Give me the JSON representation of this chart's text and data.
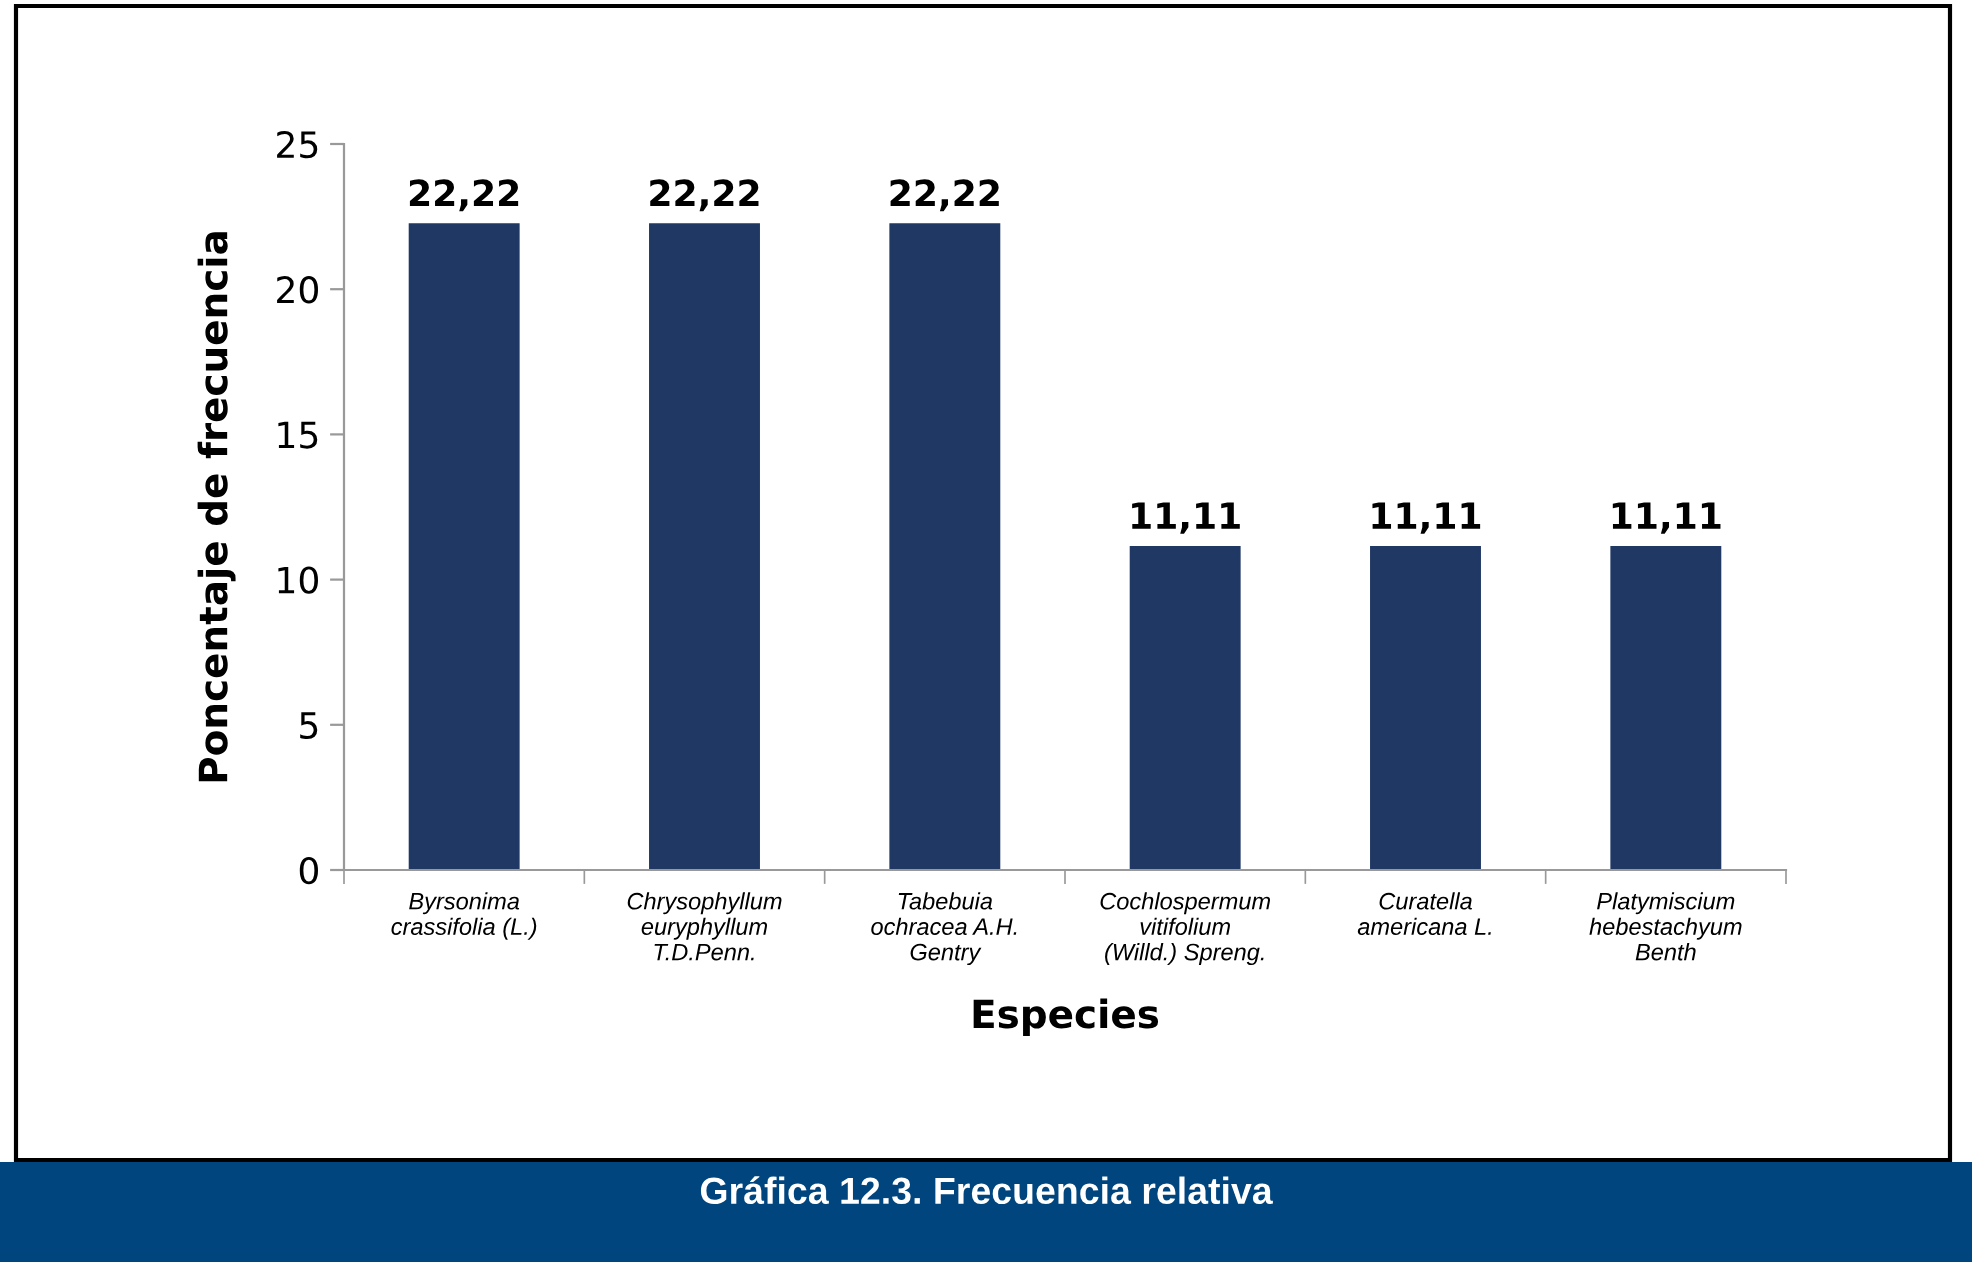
{
  "chart_data": {
    "type": "bar",
    "title": "Gráfica 12.3. Frecuencia relativa",
    "xlabel": "Especies",
    "ylabel": "Poncentaje de frecuencia",
    "categories": [
      "Byrsonima\ncrassifolia (L.)",
      "Chrysophyllum\neuryphyllum\nT.D.Penn.",
      "Tabebuia\nochracea A.H.\nGentry",
      "Cochlospermum\nvitifolium\n(Willd.) Spreng.",
      "Curatella\namericana L.",
      "Platymiscium\nhebestachyum\nBenth"
    ],
    "values": [
      22.22,
      22.22,
      22.22,
      11.11,
      11.11,
      11.11
    ],
    "value_labels": [
      "22,22",
      "22,22",
      "22,22",
      "11,11",
      "11,11",
      "11,11"
    ],
    "color": "#203864",
    "ylim": [
      0,
      25
    ],
    "yticks": [
      0,
      5,
      10,
      15,
      20,
      25
    ],
    "grid": false
  }
}
